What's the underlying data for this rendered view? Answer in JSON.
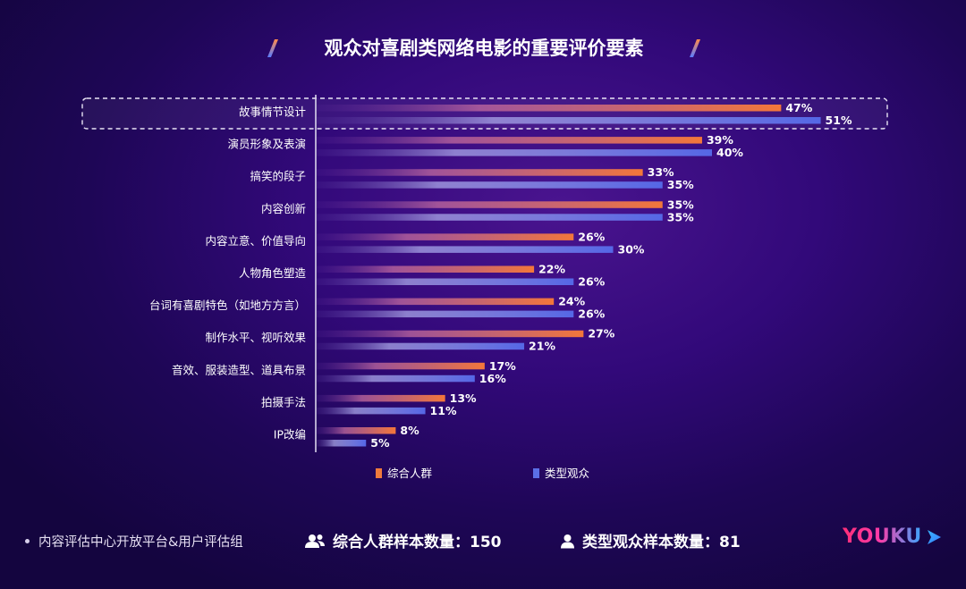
{
  "chart_data": {
    "type": "bar",
    "title": "观众对喜剧类网络电影的重要评价要素",
    "categories": [
      "故事情节设计",
      "演员形象及表演",
      "搞笑的段子",
      "内容创新",
      "内容立意、价值导向",
      "人物角色塑造",
      "台词有喜剧特色（如地方方言）",
      "制作水平、视听效果",
      "音效、服装造型、道具布景",
      "拍摄手法",
      "IP改编"
    ],
    "series": [
      {
        "name": "综合人群",
        "values": [
          47,
          39,
          33,
          35,
          26,
          22,
          24,
          27,
          17,
          13,
          8
        ],
        "labels": [
          "47%",
          "39%",
          "33%",
          "35%",
          "26%",
          "22%",
          "24%",
          "27%",
          "17%",
          "13%",
          "8%"
        ],
        "color": "#f07a3c"
      },
      {
        "name": "类型观众",
        "values": [
          51,
          40,
          35,
          35,
          30,
          26,
          26,
          21,
          16,
          11,
          5
        ],
        "labels": [
          "51%",
          "40%",
          "35%",
          "35%",
          "30%",
          "26%",
          "26%",
          "21%",
          "16%",
          "11%",
          "5%"
        ],
        "color": "#5b6fe6"
      }
    ],
    "highlighted_category": "故事情节设计",
    "legend_position": "bottom",
    "grid": false
  },
  "footer": {
    "source": "内容评估中心开放平台&用户评估组",
    "sample_general": "综合人群样本数量：150",
    "sample_type": "类型观众样本数量：81",
    "logo": "YOUKU"
  },
  "icons": [
    "title-slash-icon",
    "group-users-icon",
    "single-user-icon",
    "youku-play-icon"
  ]
}
